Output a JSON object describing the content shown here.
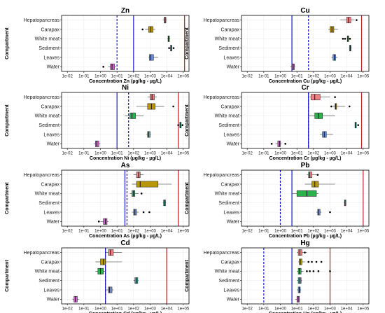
{
  "chart_data": {
    "type": "boxplot",
    "x_scale": "log10",
    "xlim": [
      0.01,
      100000
    ],
    "x_ticks": [
      "1e-02",
      "1e-01",
      "1e+00",
      "1e+01",
      "1e+02",
      "1e+03",
      "1e+04",
      "1e+05"
    ],
    "ylabel": "Compartment",
    "categories": [
      "Hepatopancreas",
      "Carapax",
      "White meat",
      "Sediment",
      "Leaves",
      "Water"
    ],
    "category_colors": {
      "Hepatopancreas": "#f08080",
      "Carapax": "#b8960a",
      "White meat": "#2ab34a",
      "Sediment": "#2aa6a0",
      "Leaves": "#6b8fd6",
      "Water": "#cc5fcc"
    },
    "reference_line_colors": {
      "solid_blue": "#1a1acc",
      "dashed_blue": "#1a1acc",
      "red": "#b22222"
    },
    "panels": [
      {
        "title": "Zn",
        "xlabel": "Concentration Zn (µg/kg - µg/L)",
        "lines": {
          "solid_blue": 100,
          "dashed_blue": 10,
          "red": 120000
        },
        "boxes": [
          {
            "category": "Hepatopancreas",
            "min": 6000,
            "q1": 7000,
            "median": 8000,
            "q3": 9000,
            "max": 10000,
            "outliers": []
          },
          {
            "category": "Carapax",
            "min": 500,
            "q1": 800,
            "median": 1100,
            "q3": 1500,
            "max": 2000,
            "outliers": [
              350
            ]
          },
          {
            "category": "White meat",
            "min": 11000,
            "q1": 12000,
            "median": 13000,
            "q3": 14500,
            "max": 16000,
            "outliers": []
          },
          {
            "category": "Sediment",
            "min": 16000,
            "q1": 17000,
            "median": 18000,
            "q3": 19000,
            "max": 20000,
            "outliers": [
              14000,
              26000
            ]
          },
          {
            "category": "Leaves",
            "min": 800,
            "q1": 900,
            "median": 1100,
            "q3": 1600,
            "max": 3000,
            "outliers": []
          },
          {
            "category": "Water",
            "min": 3,
            "q1": 4,
            "median": 5,
            "q3": 7,
            "max": 9,
            "outliers": [
              1.5
            ]
          }
        ]
      },
      {
        "title": "Cu",
        "xlabel": "Concentration Cu (µg/kg - µg/L)",
        "lines": {
          "solid_blue": 5,
          "dashed_blue": 50,
          "red": 80000
        },
        "boxes": [
          {
            "category": "Hepatopancreas",
            "min": 4000,
            "q1": 10000,
            "median": 13000,
            "q3": 18000,
            "max": 30000,
            "outliers": [
              40000
            ]
          },
          {
            "category": "Carapax",
            "min": 800,
            "q1": 1000,
            "median": 1300,
            "q3": 1700,
            "max": 3000,
            "outliers": []
          },
          {
            "category": "White meat",
            "min": 10000,
            "q1": 11000,
            "median": 12000,
            "q3": 13000,
            "max": 15000,
            "outliers": [
              6000,
              8000,
              16000
            ]
          },
          {
            "category": "Sediment",
            "min": 14000,
            "q1": 15000,
            "median": 17000,
            "q3": 18000,
            "max": 20000,
            "outliers": []
          },
          {
            "category": "Leaves",
            "min": 1200,
            "q1": 1500,
            "median": 1800,
            "q3": 2200,
            "max": 2800,
            "outliers": []
          },
          {
            "category": "Water",
            "min": 4,
            "q1": 5,
            "median": 6,
            "q3": 7,
            "max": 8,
            "outliers": []
          }
        ]
      },
      {
        "title": "Ni",
        "xlabel": "Concentration Ni (µg/kg - µg/L)",
        "lines": {
          "solid_blue": 10,
          "dashed_blue": 50,
          "red": 50000
        },
        "boxes": [
          {
            "category": "Hepatopancreas",
            "min": 700,
            "q1": 1000,
            "median": 1300,
            "q3": 1800,
            "max": 2500,
            "outliers": []
          },
          {
            "category": "Carapax",
            "min": 150,
            "q1": 700,
            "median": 1200,
            "q3": 2000,
            "max": 7000,
            "outliers": [
              25000
            ]
          },
          {
            "category": "White meat",
            "min": 30,
            "q1": 60,
            "median": 80,
            "q3": 130,
            "max": 400,
            "outliers": []
          },
          {
            "category": "Sediment",
            "min": 60000,
            "q1": 62000,
            "median": 65000,
            "q3": 68000,
            "max": 70000,
            "outliers": [
              50000,
              90000
            ]
          },
          {
            "category": "Leaves",
            "min": 600,
            "q1": 700,
            "median": 800,
            "q3": 1000,
            "max": 1100,
            "outliers": []
          },
          {
            "category": "Water",
            "min": 0.4,
            "q1": 0.5,
            "median": 0.6,
            "q3": 0.8,
            "max": 1,
            "outliers": []
          }
        ]
      },
      {
        "title": "Cr",
        "xlabel": "Concentration Cr (µg/kg - µg/L)",
        "lines": {
          "solid_blue": 50,
          "dashed_blue": 50,
          "red": 80000
        },
        "boxes": [
          {
            "category": "Hepatopancreas",
            "min": 60,
            "q1": 70,
            "median": 120,
            "q3": 250,
            "max": 1000,
            "outliers": [
              2000
            ]
          },
          {
            "category": "Carapax",
            "min": 1500,
            "q1": 2000,
            "median": 2200,
            "q3": 2500,
            "max": 8000,
            "outliers": [
              1200,
              15000
            ]
          },
          {
            "category": "White meat",
            "min": 50,
            "q1": 120,
            "median": 200,
            "q3": 350,
            "max": 2000,
            "outliers": []
          },
          {
            "category": "Sediment",
            "min": 30000,
            "q1": 32000,
            "median": 34000,
            "q3": 36000,
            "max": 38000,
            "outliers": [
              50000
            ]
          },
          {
            "category": "Leaves",
            "min": 250,
            "q1": 350,
            "median": 450,
            "q3": 600,
            "max": 1500,
            "outliers": []
          },
          {
            "category": "Water",
            "min": 0.5,
            "q1": 0.7,
            "median": 0.9,
            "q3": 1,
            "max": 1.2,
            "outliers": [
              0.3,
              2
            ]
          }
        ]
      },
      {
        "title": "As",
        "xlabel": "Concentration As (µg/kg - µg/L)",
        "lines": {
          "solid_blue": 30,
          "dashed_blue": 40,
          "red": 50000
        },
        "boxes": [
          {
            "category": "Hepatopancreas",
            "min": 100,
            "q1": 150,
            "median": 200,
            "q3": 250,
            "max": 400,
            "outliers": []
          },
          {
            "category": "Carapax",
            "min": 80,
            "q1": 150,
            "median": 250,
            "q3": 3000,
            "max": 20000,
            "outliers": []
          },
          {
            "category": "White meat",
            "min": 60,
            "q1": 80,
            "median": 100,
            "q3": 120,
            "max": 200,
            "outliers": [
              300
            ]
          },
          {
            "category": "Sediment",
            "min": 6000,
            "q1": 6500,
            "median": 7500,
            "q3": 8500,
            "max": 9000,
            "outliers": []
          },
          {
            "category": "Leaves",
            "min": 80,
            "q1": 100,
            "median": 120,
            "q3": 150,
            "max": 200,
            "outliers": [
              400,
              900
            ]
          },
          {
            "category": "Water",
            "min": 1,
            "q1": 1.5,
            "median": 2,
            "q3": 2.5,
            "max": 3,
            "outliers": [
              0.8
            ]
          }
        ]
      },
      {
        "title": "Pb",
        "xlabel": "Concentration Pb (µg/kg - µg/L)",
        "lines": {
          "solid_blue": 5,
          "dashed_blue": 1,
          "red": 100000
        },
        "boxes": [
          {
            "category": "Hepatopancreas",
            "min": 40,
            "q1": 50,
            "median": 60,
            "q3": 80,
            "max": 200,
            "outliers": [
              180
            ]
          },
          {
            "category": "Carapax",
            "min": 30,
            "q1": 80,
            "median": 120,
            "q3": 200,
            "max": 2000,
            "outliers": []
          },
          {
            "category": "White meat",
            "min": 5,
            "q1": 10,
            "median": 40,
            "q3": 150,
            "max": 200,
            "outliers": []
          },
          {
            "category": "Sediment",
            "min": 7000,
            "q1": 7500,
            "median": 8000,
            "q3": 8500,
            "max": 9000,
            "outliers": []
          },
          {
            "category": "Leaves",
            "min": 150,
            "q1": 180,
            "median": 200,
            "q3": 250,
            "max": 300,
            "outliers": [
              1000
            ]
          },
          {
            "category": "Water",
            "min": null,
            "q1": null,
            "median": null,
            "q3": null,
            "max": null,
            "outliers": []
          }
        ]
      },
      {
        "title": "Cd",
        "xlabel": "Concentration Cd (µg/kg - µg/L)",
        "lines": {
          "solid_blue": 2,
          "dashed_blue": 2,
          "red": 10000
        },
        "boxes": [
          {
            "category": "Hepatopancreas",
            "min": 2,
            "q1": 3,
            "median": 4,
            "q3": 6,
            "max": 20,
            "outliers": []
          },
          {
            "category": "Carapax",
            "min": 0.5,
            "q1": 1,
            "median": 1.5,
            "q3": 2,
            "max": 20,
            "outliers": []
          },
          {
            "category": "White meat",
            "min": 0.5,
            "q1": 0.7,
            "median": 1,
            "q3": 1.5,
            "max": 2,
            "outliers": []
          },
          {
            "category": "Sediment",
            "min": 100,
            "q1": 120,
            "median": 150,
            "q3": 180,
            "max": 200,
            "outliers": []
          },
          {
            "category": "Leaves",
            "min": 2,
            "q1": 3,
            "median": 3.5,
            "q3": 5,
            "max": 6,
            "outliers": []
          },
          {
            "category": "Water",
            "min": 0.02,
            "q1": 0.025,
            "median": 0.03,
            "q3": 0.04,
            "max": 0.05,
            "outliers": []
          }
        ]
      },
      {
        "title": "Hg",
        "xlabel": "Concentration Hg (µg/kg - µg/L)",
        "lines": {
          "solid_blue": 5,
          "dashed_blue": 0.1,
          "red": 1000
        },
        "boxes": [
          {
            "category": "Hepatopancreas",
            "min": 10,
            "q1": 12,
            "median": 15,
            "q3": 20,
            "max": 40,
            "outliers": [
              30
            ]
          },
          {
            "category": "Carapax",
            "min": 12,
            "q1": 14,
            "median": 16,
            "q3": 20,
            "max": 30,
            "outliers": [
              50,
              80,
              150,
              300
            ]
          },
          {
            "category": "White meat",
            "min": 10,
            "q1": 12,
            "median": 14,
            "q3": 18,
            "max": 25,
            "outliers": [
              40,
              60,
              100,
              200,
              1000
            ]
          },
          {
            "category": "Sediment",
            "min": 10,
            "q1": 12,
            "median": 15,
            "q3": 18,
            "max": 20,
            "outliers": []
          },
          {
            "category": "Leaves",
            "min": 10,
            "q1": 12,
            "median": 14,
            "q3": 16,
            "max": 18,
            "outliers": []
          },
          {
            "category": "Water",
            "min": 8,
            "q1": 10,
            "median": 12,
            "q3": 14,
            "max": 15,
            "outliers": []
          }
        ]
      }
    ]
  }
}
